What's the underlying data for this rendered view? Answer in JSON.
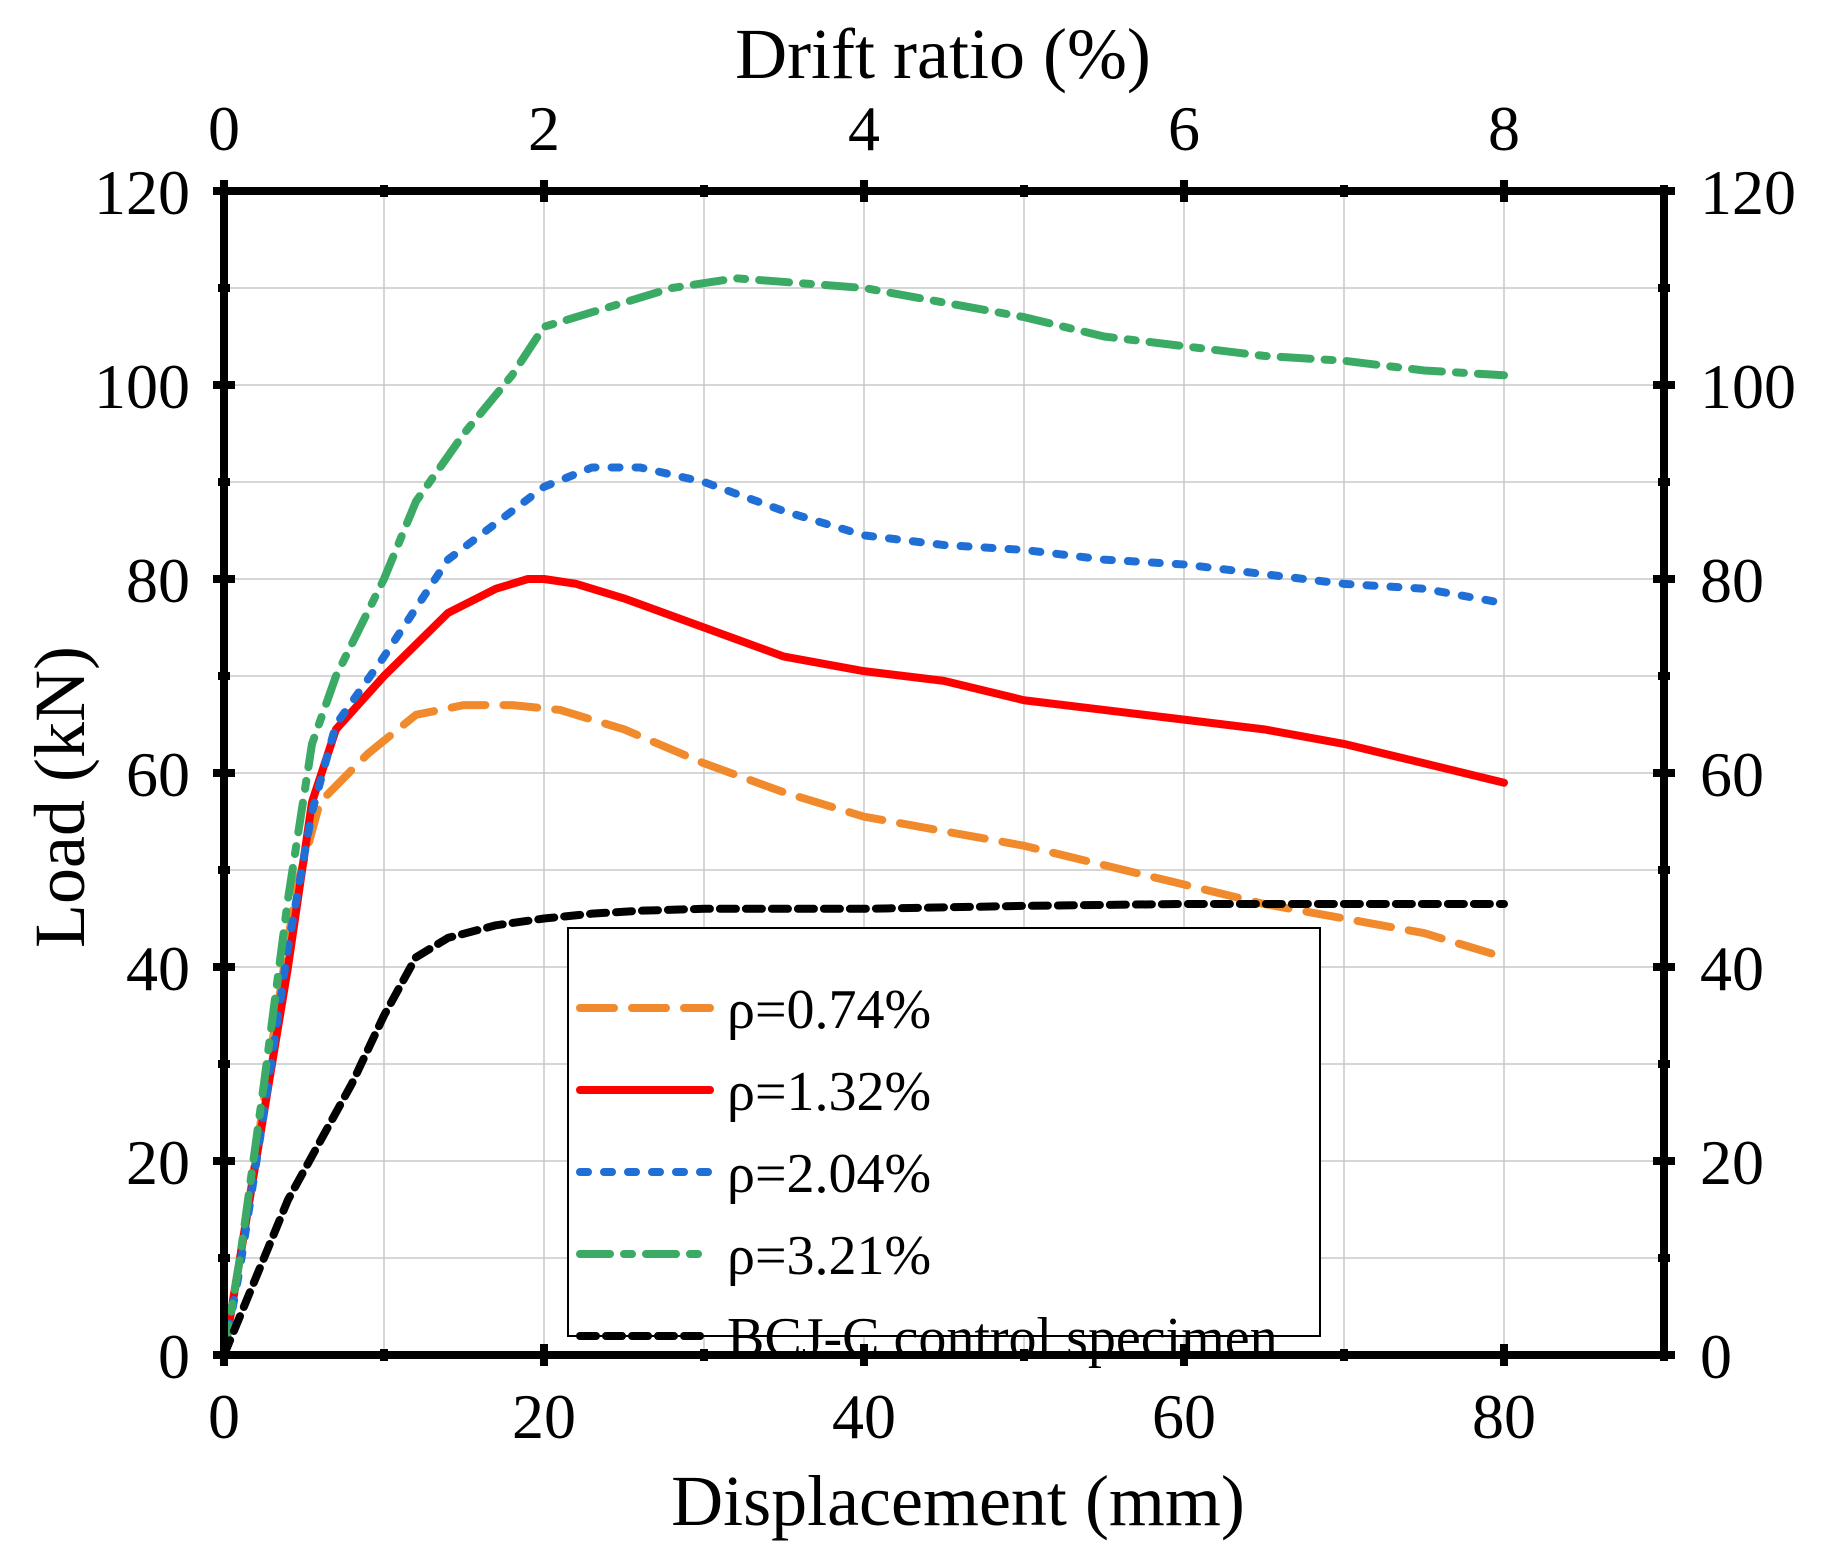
{
  "chart_data": {
    "type": "line",
    "title": "",
    "xlabel": "Displacement (mm)",
    "ylabel": "Load (kN)",
    "top_xlabel": "Drift ratio (%)",
    "xlim": [
      0,
      90
    ],
    "ylim": [
      0,
      120
    ],
    "top_xlim": [
      0,
      9
    ],
    "x_ticks": [
      0,
      20,
      40,
      60,
      80
    ],
    "y_ticks": [
      0,
      20,
      40,
      60,
      80,
      100,
      120
    ],
    "top_x_ticks": [
      0,
      2,
      4,
      6,
      8
    ],
    "x_tick_labels": [
      "0",
      "20",
      "40",
      "60",
      "80"
    ],
    "y_tick_labels": [
      "0",
      "20",
      "40",
      "60",
      "80",
      "100",
      "120"
    ],
    "top_x_tick_labels": [
      "0",
      "2",
      "4",
      "6",
      "8"
    ],
    "grid": true,
    "legend_position": "bottom-center",
    "series": [
      {
        "name": "ρ=0.74%",
        "color": "#F08A2C",
        "style": "dashed",
        "x": [
          0,
          1.5,
          3,
          4.5,
          6,
          9,
          12,
          15,
          18,
          21,
          25,
          30,
          35,
          40,
          45,
          50,
          55,
          60,
          65,
          70,
          75,
          80
        ],
        "y": [
          0,
          15,
          32,
          48,
          57,
          62,
          66,
          67,
          67,
          66.5,
          64.5,
          61,
          58,
          55.5,
          54,
          52.5,
          50.5,
          48.5,
          46.5,
          45,
          43.5,
          41
        ]
      },
      {
        "name": "ρ=1.32%",
        "color": "#FF0000",
        "style": "solid",
        "x": [
          0,
          1,
          2.5,
          4,
          5.5,
          7,
          10,
          14,
          17,
          19,
          20,
          22,
          25,
          30,
          35,
          40,
          45,
          50,
          55,
          60,
          65,
          70,
          75,
          80
        ],
        "y": [
          0,
          10,
          25,
          40,
          57,
          64.5,
          70,
          76.5,
          79,
          80,
          80,
          79.5,
          78,
          75,
          72,
          70.5,
          69.5,
          67.5,
          66.5,
          65.5,
          64.5,
          63,
          61,
          59
        ]
      },
      {
        "name": "ρ=2.04%",
        "color": "#1F6FD6",
        "style": "dotted",
        "x": [
          0,
          1,
          2.5,
          4,
          5.5,
          7,
          10,
          14,
          18,
          20,
          23,
          26,
          30,
          35,
          40,
          45,
          50,
          55,
          60,
          65,
          70,
          75,
          80
        ],
        "y": [
          0,
          9,
          25,
          42,
          56,
          65,
          72,
          82,
          87,
          89.5,
          91.5,
          91.5,
          90,
          87,
          84.5,
          83.5,
          83,
          82,
          81.5,
          80.5,
          79.5,
          79,
          77.5
        ]
      },
      {
        "name": "ρ=3.21%",
        "color": "#3BAA64",
        "style": "dashdot",
        "x": [
          0,
          1,
          2.5,
          4,
          5.5,
          7,
          10,
          12,
          15,
          18,
          20,
          24,
          28,
          32,
          36,
          40,
          45,
          50,
          55,
          60,
          65,
          70,
          75,
          80
        ],
        "y": [
          0,
          10,
          28,
          47,
          63,
          70,
          80,
          88,
          95,
          101,
          106,
          108,
          110,
          111,
          110.5,
          110,
          108.5,
          107,
          105,
          104,
          103,
          102.5,
          101.5,
          101
        ]
      },
      {
        "name": "BCJ-C control specimen",
        "color": "#000000",
        "style": "shortdash",
        "x": [
          0,
          2,
          4,
          6,
          8,
          10,
          12,
          14,
          17,
          20,
          23,
          26,
          30,
          35,
          40,
          50,
          60,
          70,
          80
        ],
        "y": [
          0,
          8,
          16,
          22,
          28,
          35,
          41,
          43,
          44.3,
          45,
          45.5,
          45.8,
          46,
          46,
          46,
          46.3,
          46.5,
          46.5,
          46.5
        ]
      }
    ]
  }
}
